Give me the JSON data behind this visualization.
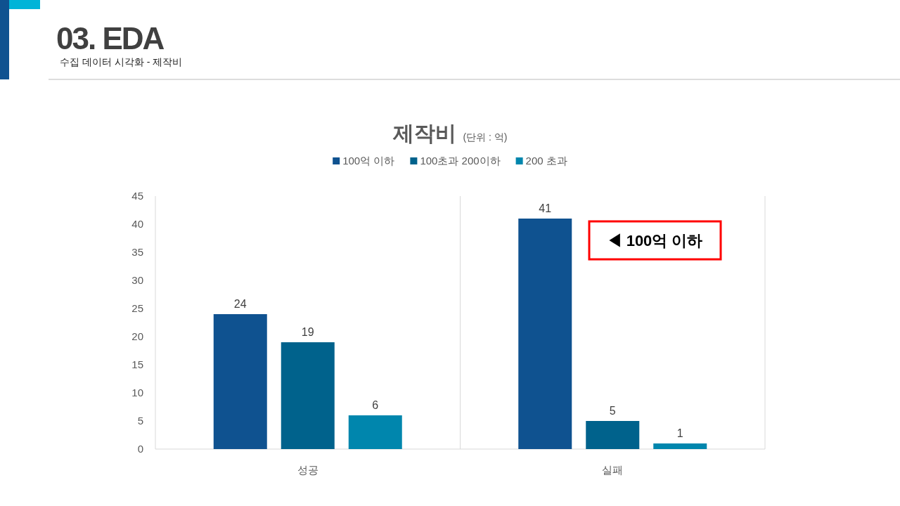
{
  "chart_data": {
    "type": "bar",
    "title": "제작비",
    "subtitle": "(단위 : 억)",
    "categories": [
      "성공",
      "실패"
    ],
    "series": [
      {
        "name": "100억 이하",
        "color": "#0f5290",
        "values": [
          24,
          41
        ]
      },
      {
        "name": "100초과 200이하",
        "color": "#00628c",
        "values": [
          19,
          5
        ]
      },
      {
        "name": "200 초과",
        "color": "#0086ad",
        "values": [
          6,
          1
        ]
      }
    ],
    "ylim": [
      0,
      45
    ],
    "yticks": [
      0,
      5,
      10,
      15,
      20,
      25,
      30,
      35,
      40,
      45
    ],
    "grid": "x",
    "legend": "top",
    "data_labels": true,
    "annotations": [
      "03. EDA",
      "수집 데이터 시각화 - 제작비",
      "◀ 100억 이하"
    ]
  }
}
